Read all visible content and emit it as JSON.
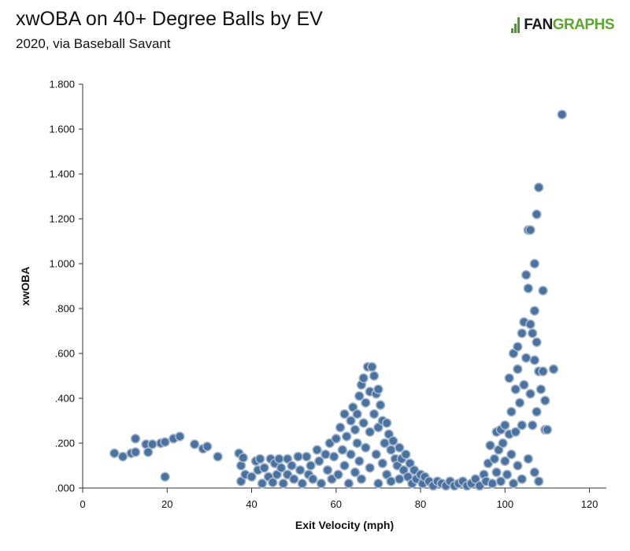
{
  "header": {
    "title": "xwOBA on 40+ Degree Balls by EV",
    "subtitle": "2020, via Baseball Savant",
    "logo_primary": "FAN",
    "logo_secondary": "GRAPHS"
  },
  "colors": {
    "point_fill": "#4a72a0",
    "point_stroke": "#a9b9cc",
    "brand_green": "#5aa830",
    "axis": "#333333"
  },
  "chart_data": {
    "type": "scatter",
    "title": "xwOBA on 40+ Degree Balls by EV",
    "subtitle": "2020, via Baseball Savant",
    "xlabel": "Exit Velocity (mph)",
    "ylabel": "xwOBA",
    "xlim": [
      0,
      124
    ],
    "ylim": [
      0,
      1.8
    ],
    "x_ticks": [
      0,
      20,
      40,
      60,
      80,
      100,
      120
    ],
    "x_tick_labels": [
      "0",
      "20",
      "40",
      "60",
      "80",
      "100",
      "120"
    ],
    "y_ticks": [
      0,
      0.2,
      0.4,
      0.6,
      0.8,
      1.0,
      1.2,
      1.4,
      1.6,
      1.8
    ],
    "y_tick_labels": [
      ".000",
      ".200",
      ".400",
      ".600",
      ".800",
      "1.000",
      "1.200",
      "1.400",
      "1.600",
      "1.800"
    ],
    "grid": false,
    "points": [
      [
        7.5,
        0.155
      ],
      [
        9.5,
        0.14
      ],
      [
        11.5,
        0.155
      ],
      [
        12.5,
        0.22
      ],
      [
        12.5,
        0.16
      ],
      [
        15,
        0.195
      ],
      [
        15.5,
        0.16
      ],
      [
        16.5,
        0.195
      ],
      [
        18.5,
        0.2
      ],
      [
        19.5,
        0.205
      ],
      [
        19.5,
        0.05
      ],
      [
        21.5,
        0.22
      ],
      [
        23,
        0.23
      ],
      [
        26.5,
        0.195
      ],
      [
        28.5,
        0.175
      ],
      [
        29.5,
        0.185
      ],
      [
        32,
        0.14
      ],
      [
        37,
        0.155
      ],
      [
        37.5,
        0.1
      ],
      [
        37.5,
        0.03
      ],
      [
        38,
        0.135
      ],
      [
        38.5,
        0.06
      ],
      [
        40,
        0.05
      ],
      [
        41,
        0.12
      ],
      [
        41.5,
        0.08
      ],
      [
        42,
        0.13
      ],
      [
        42.5,
        0.02
      ],
      [
        43,
        0.09
      ],
      [
        44,
        0.05
      ],
      [
        44.5,
        0.13
      ],
      [
        45,
        0.025
      ],
      [
        45.5,
        0.11
      ],
      [
        46,
        0.06
      ],
      [
        46.5,
        0.13
      ],
      [
        47,
        0.09
      ],
      [
        47.5,
        0.02
      ],
      [
        48.5,
        0.13
      ],
      [
        48.5,
        0.06
      ],
      [
        49.5,
        0.1
      ],
      [
        50,
        0.04
      ],
      [
        51,
        0.14
      ],
      [
        51.5,
        0.08
      ],
      [
        52,
        0.02
      ],
      [
        53,
        0.14
      ],
      [
        53.5,
        0.06
      ],
      [
        54,
        0.1
      ],
      [
        54.5,
        0.04
      ],
      [
        55.5,
        0.17
      ],
      [
        56,
        0.12
      ],
      [
        56.5,
        0.02
      ],
      [
        57.5,
        0.15
      ],
      [
        58,
        0.08
      ],
      [
        58.5,
        0.2
      ],
      [
        59,
        0.04
      ],
      [
        59.5,
        0.14
      ],
      [
        60,
        0.22
      ],
      [
        60.5,
        0.06
      ],
      [
        61,
        0.27
      ],
      [
        61.5,
        0.17
      ],
      [
        62,
        0.33
      ],
      [
        62,
        0.1
      ],
      [
        62.5,
        0.23
      ],
      [
        63,
        0.02
      ],
      [
        63.5,
        0.3
      ],
      [
        63.5,
        0.15
      ],
      [
        64,
        0.36
      ],
      [
        64.5,
        0.26
      ],
      [
        64.5,
        0.07
      ],
      [
        65,
        0.33
      ],
      [
        65,
        0.2
      ],
      [
        65.5,
        0.41
      ],
      [
        65.5,
        0.12
      ],
      [
        66,
        0.46
      ],
      [
        66,
        0.04
      ],
      [
        66.5,
        0.29
      ],
      [
        66.5,
        0.49
      ],
      [
        67,
        0.38
      ],
      [
        67,
        0.18
      ],
      [
        67.5,
        0.54
      ],
      [
        68,
        0.43
      ],
      [
        68,
        0.25
      ],
      [
        68,
        0.09
      ],
      [
        68.5,
        0.54
      ],
      [
        69,
        0.5
      ],
      [
        69,
        0.33
      ],
      [
        69.5,
        0.42
      ],
      [
        69.5,
        0.15
      ],
      [
        70,
        0.44
      ],
      [
        70,
        0.27
      ],
      [
        70,
        0.02
      ],
      [
        70.5,
        0.37
      ],
      [
        71,
        0.3
      ],
      [
        71,
        0.11
      ],
      [
        71.5,
        0.2
      ],
      [
        72,
        0.29
      ],
      [
        72,
        0.06
      ],
      [
        72.5,
        0.24
      ],
      [
        73,
        0.17
      ],
      [
        73,
        0.03
      ],
      [
        73.5,
        0.21
      ],
      [
        74,
        0.13
      ],
      [
        74.5,
        0.1
      ],
      [
        75,
        0.18
      ],
      [
        75,
        0.04
      ],
      [
        75.5,
        0.13
      ],
      [
        76,
        0.08
      ],
      [
        76.5,
        0.15
      ],
      [
        77,
        0.05
      ],
      [
        77.5,
        0.11
      ],
      [
        78,
        0.02
      ],
      [
        78.5,
        0.08
      ],
      [
        79,
        0.04
      ],
      [
        80,
        0.06
      ],
      [
        80.5,
        0.02
      ],
      [
        81,
        0.05
      ],
      [
        82,
        0.03
      ],
      [
        83,
        0.01
      ],
      [
        84,
        0.03
      ],
      [
        85,
        0.02
      ],
      [
        86,
        0.01
      ],
      [
        87,
        0.03
      ],
      [
        88,
        0.01
      ],
      [
        89,
        0.02
      ],
      [
        90,
        0.03
      ],
      [
        91,
        0.01
      ],
      [
        92,
        0.02
      ],
      [
        93,
        0.04
      ],
      [
        94,
        0.01
      ],
      [
        95,
        0.06
      ],
      [
        95.5,
        0.03
      ],
      [
        96,
        0.11
      ],
      [
        96.5,
        0.19
      ],
      [
        97,
        0.02
      ],
      [
        97.5,
        0.13
      ],
      [
        98,
        0.25
      ],
      [
        98,
        0.07
      ],
      [
        98.5,
        0.17
      ],
      [
        99,
        0.26
      ],
      [
        99,
        0.03
      ],
      [
        99.5,
        0.2
      ],
      [
        100,
        0.12
      ],
      [
        100,
        0.28
      ],
      [
        100.5,
        0.06
      ],
      [
        101,
        0.24
      ],
      [
        101,
        0.49
      ],
      [
        101.5,
        0.34
      ],
      [
        101.5,
        0.15
      ],
      [
        102,
        0.6
      ],
      [
        102,
        0.02
      ],
      [
        102.5,
        0.44
      ],
      [
        102.5,
        0.25
      ],
      [
        103,
        0.63
      ],
      [
        103,
        0.53
      ],
      [
        103,
        0.1
      ],
      [
        103.5,
        0.38
      ],
      [
        104,
        0.69
      ],
      [
        104,
        0.28
      ],
      [
        104,
        0.04
      ],
      [
        104.5,
        0.74
      ],
      [
        104.5,
        0.46
      ],
      [
        105,
        0.95
      ],
      [
        105,
        0.58
      ],
      [
        105.5,
        1.15
      ],
      [
        105.5,
        0.89
      ],
      [
        105.5,
        0.13
      ],
      [
        106,
        1.15
      ],
      [
        106,
        0.73
      ],
      [
        106,
        0.42
      ],
      [
        106.5,
        0.69
      ],
      [
        106.5,
        0.28
      ],
      [
        107,
        1.0
      ],
      [
        107,
        0.79
      ],
      [
        107,
        0.57
      ],
      [
        107,
        0.07
      ],
      [
        107.5,
        1.22
      ],
      [
        107.5,
        0.65
      ],
      [
        107.5,
        0.34
      ],
      [
        108,
        1.34
      ],
      [
        108,
        0.52
      ],
      [
        108,
        0.03
      ],
      [
        108.5,
        0.44
      ],
      [
        109,
        0.52
      ],
      [
        109,
        0.88
      ],
      [
        109.5,
        0.26
      ],
      [
        109.5,
        0.39
      ],
      [
        110,
        0.26
      ],
      [
        111.5,
        0.53
      ],
      [
        113.5,
        1.665
      ]
    ]
  }
}
